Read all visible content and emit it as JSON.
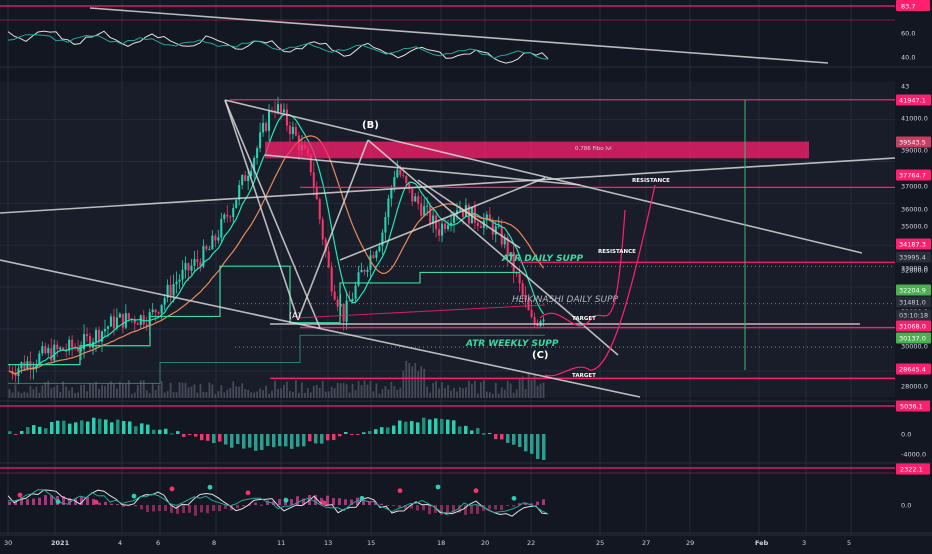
{
  "colors": {
    "background": "#131722",
    "pane_bg": "#1e2230",
    "grid": "#262b3a",
    "axis_text": "#d1d4dc",
    "level": "#ff1f6e",
    "bull": "#26d1b1",
    "bear": "#f23669",
    "trend": "#d7d7d7",
    "ma_teal": "#1de9b6",
    "ma_orange": "#e8895a",
    "atr_green": "#3ed9a0",
    "price_tag": "#ff1f6e",
    "current_tag": "#4caf50"
  },
  "chart_data": [
    {
      "type": "line",
      "panel": "oscillator-top",
      "y_ticks": [
        "83.7",
        "60.0",
        "40.0"
      ],
      "highlight_value": "83.7",
      "grid": true
    },
    {
      "type": "candlestick",
      "panel": "price",
      "currency": "USD",
      "y_ticks": [
        "43",
        "41000.0",
        "39000.0",
        "37000.0",
        "36000.0",
        "35000.0",
        "34000.0",
        "33000.0",
        "32800.0",
        "31000.0",
        "30000.0",
        "29000.0",
        "28000.0"
      ],
      "price_tags": [
        {
          "value": "41947.1",
          "kind": "level"
        },
        {
          "value": "39543.5",
          "kind": "zone"
        },
        {
          "value": "37764.7",
          "kind": "level"
        },
        {
          "value": "34187.3",
          "kind": "level"
        },
        {
          "value": "33995.4",
          "kind": "plain"
        },
        {
          "value": "32204.9",
          "kind": "current"
        },
        {
          "value": "31481.0",
          "kind": "plain"
        },
        {
          "value": "03:10:18",
          "kind": "plain"
        },
        {
          "value": "31068.0",
          "kind": "level"
        },
        {
          "value": "30137.0",
          "kind": "current"
        },
        {
          "value": "28645.4",
          "kind": "level"
        }
      ],
      "annotations": [
        {
          "text": "(B)",
          "kind": "wave"
        },
        {
          "text": "(C)",
          "kind": "wave"
        },
        {
          "text": "(A)",
          "kind": "wave"
        },
        {
          "text": "0.786 Fibo lvl",
          "kind": "fib"
        },
        {
          "text": "RESISTANCE",
          "kind": "label"
        },
        {
          "text": "RESISTANCE",
          "kind": "label"
        },
        {
          "text": "ATR DAILY SUPP",
          "kind": "atr"
        },
        {
          "text": "HEIKINASHI DAILY SUPP",
          "kind": "ha"
        },
        {
          "text": "ATR WEEKLY SUPP",
          "kind": "atr"
        },
        {
          "text": "TARGET",
          "kind": "label"
        },
        {
          "text": "TARGET",
          "kind": "label"
        }
      ],
      "grid": true
    },
    {
      "type": "bar",
      "panel": "momentum",
      "y_ticks": [
        "5036.1",
        "0.0",
        "-4000.0"
      ],
      "highlight_value": "5036.1",
      "grid": true
    },
    {
      "type": "line",
      "panel": "macd",
      "y_ticks": [
        "2322.1",
        "0.0"
      ],
      "highlight_value": "2322.1",
      "grid": true
    }
  ],
  "time_axis": [
    "30",
    "2021",
    "4",
    "6",
    "8",
    "11",
    "13",
    "15",
    "18",
    "20",
    "22",
    "25",
    "27",
    "29",
    "Feb",
    "3",
    "5"
  ]
}
